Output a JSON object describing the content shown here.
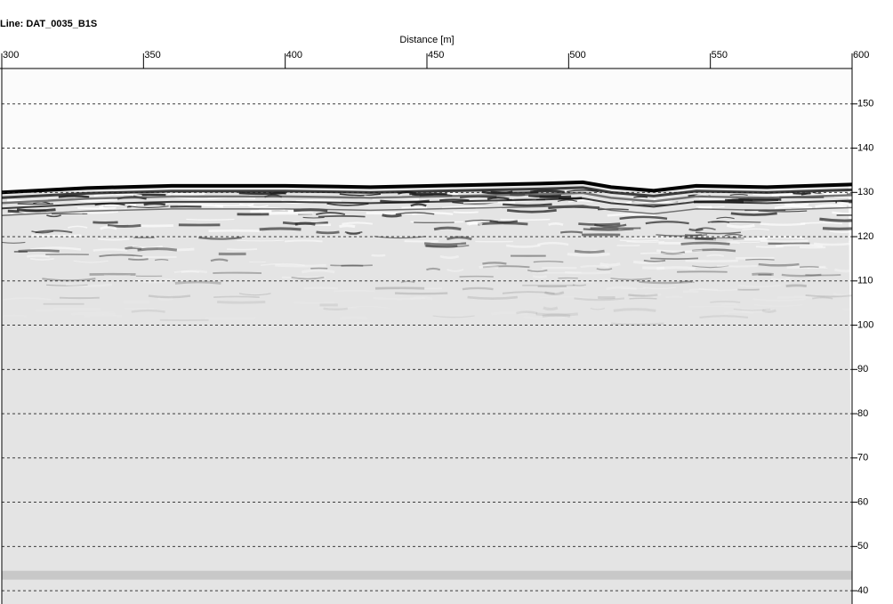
{
  "chart_data": {
    "type": "radargram",
    "title": "Line: DAT_0035_B1S",
    "xlabel": "Distance [m]",
    "xlim": [
      300,
      600
    ],
    "xticks": [
      300,
      350,
      400,
      450,
      500,
      550,
      600
    ],
    "ylim": [
      37,
      158
    ],
    "yticks": [
      40,
      50,
      60,
      70,
      80,
      90,
      100,
      110,
      120,
      130,
      140,
      150
    ],
    "grid": true,
    "series": [
      {
        "color": "#000000",
        "x": [
          300,
          330,
          360,
          400,
          430,
          460,
          490,
          505,
          515,
          530,
          545,
          570,
          600
        ],
        "values": [
          130,
          131,
          131.5,
          131.5,
          131.2,
          131.6,
          132,
          132.3,
          131.2,
          130.4,
          131.5,
          131.2,
          131.8
        ]
      }
    ]
  }
}
